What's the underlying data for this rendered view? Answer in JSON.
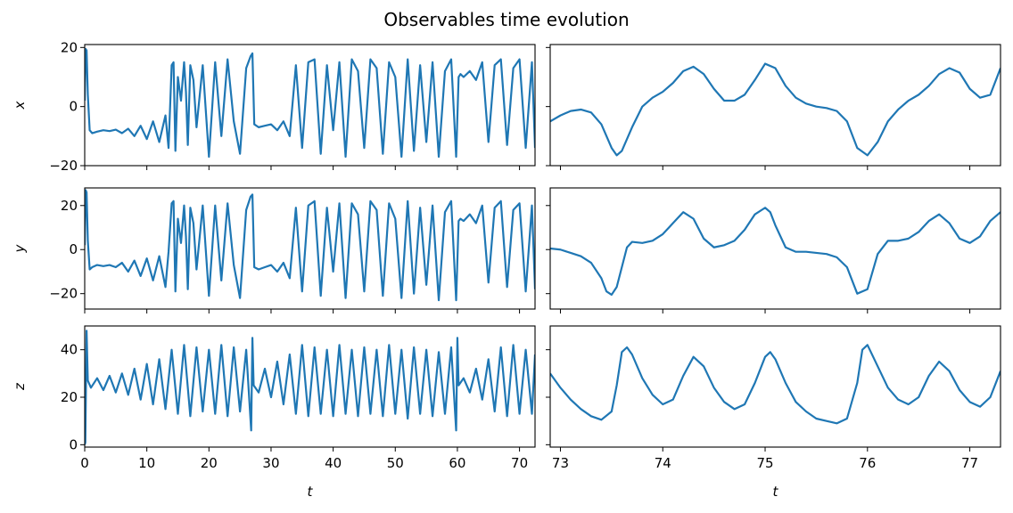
{
  "title": "Observables time evolution",
  "chart_data": [
    {
      "type": "line",
      "panel": "x-full",
      "ylabel": "x",
      "xlabel": "",
      "xlim": [
        0,
        72.5
      ],
      "ylim": [
        -20,
        21
      ],
      "xticks": [
        0,
        10,
        20,
        30,
        40,
        50,
        60,
        70
      ],
      "yticks": [
        -20,
        0,
        20
      ],
      "x_ticklabels_visible": false,
      "series": [
        {
          "color": "#1f77b4",
          "x": [
            0,
            0.15,
            0.3,
            0.5,
            0.8,
            1.2,
            2,
            3,
            4,
            5,
            6,
            7,
            8,
            9,
            10,
            11,
            12,
            13,
            13.5,
            14,
            14.3,
            14.6,
            15,
            15.5,
            16,
            16.3,
            16.6,
            17,
            17.5,
            18,
            19,
            20,
            21,
            22,
            23,
            24,
            25,
            26,
            26.7,
            27,
            27.3,
            28,
            29,
            30,
            31,
            32,
            33,
            34,
            35,
            36,
            37,
            38,
            39,
            40,
            41,
            42,
            43,
            44,
            45,
            46,
            47,
            48,
            49,
            50,
            51,
            52,
            53,
            54,
            55,
            56,
            57,
            58,
            59,
            59.8,
            60.2,
            60.5,
            61,
            62,
            63,
            64,
            65,
            66,
            67,
            68,
            69,
            70,
            71,
            72,
            72.5
          ],
          "values": [
            2,
            19.5,
            19,
            4,
            -8,
            -9,
            -8.5,
            -8,
            -8.3,
            -7.8,
            -9,
            -7.5,
            -10,
            -6.5,
            -11,
            -5,
            -12,
            -3,
            -14,
            14,
            15,
            -15,
            10,
            2,
            15,
            5,
            -13,
            14,
            9,
            -7,
            14,
            -17,
            15,
            -10,
            16,
            -5,
            -16,
            13,
            17,
            18,
            -6,
            -7,
            -6.5,
            -6,
            -8,
            -5,
            -10,
            14,
            -14,
            15,
            16,
            -16,
            14,
            -8,
            15,
            -17,
            16,
            12,
            -14,
            16,
            13,
            -16,
            15,
            10,
            -17,
            16,
            -15,
            14,
            -12,
            15,
            -17,
            12,
            16,
            -17,
            10,
            11,
            10,
            12,
            9,
            15,
            -12,
            14,
            16,
            -13,
            13,
            16,
            -14,
            15,
            -14
          ]
        }
      ]
    },
    {
      "type": "line",
      "panel": "x-zoom",
      "ylabel": "",
      "xlabel": "",
      "xlim": [
        72.9,
        77.3
      ],
      "ylim": [
        -20,
        21
      ],
      "xticks": [
        73,
        74,
        75,
        76,
        77
      ],
      "yticks": [
        -20,
        0,
        20
      ],
      "x_ticklabels_visible": false,
      "y_ticklabels_visible": false,
      "series": [
        {
          "color": "#1f77b4",
          "x": [
            72.9,
            73,
            73.1,
            73.2,
            73.3,
            73.4,
            73.5,
            73.55,
            73.6,
            73.7,
            73.8,
            73.9,
            74,
            74.1,
            74.2,
            74.3,
            74.4,
            74.5,
            74.6,
            74.7,
            74.8,
            74.9,
            75,
            75.1,
            75.2,
            75.3,
            75.4,
            75.5,
            75.6,
            75.7,
            75.8,
            75.9,
            76,
            76.1,
            76.2,
            76.3,
            76.4,
            76.5,
            76.6,
            76.7,
            76.8,
            76.9,
            77,
            77.1,
            77.2,
            77.3
          ],
          "values": [
            -5,
            -3,
            -1.5,
            -1,
            -2,
            -6,
            -14,
            -16.5,
            -15,
            -7,
            0,
            3,
            5,
            8,
            12,
            13.5,
            11,
            6,
            2,
            2,
            4,
            9,
            14.5,
            13,
            7,
            3,
            1,
            0,
            -0.5,
            -1.5,
            -5,
            -14,
            -16.5,
            -12,
            -5,
            -1,
            2,
            4,
            7,
            11,
            13,
            11.5,
            6,
            3,
            4,
            13
          ]
        }
      ]
    },
    {
      "type": "line",
      "panel": "y-full",
      "ylabel": "y",
      "xlabel": "",
      "xlim": [
        0,
        72.5
      ],
      "ylim": [
        -27,
        28
      ],
      "xticks": [
        0,
        10,
        20,
        30,
        40,
        50,
        60,
        70
      ],
      "yticks": [
        -20,
        0,
        20
      ],
      "x_ticklabels_visible": false,
      "series": [
        {
          "color": "#1f77b4",
          "x": [
            0,
            0.15,
            0.3,
            0.5,
            0.8,
            1.2,
            2,
            3,
            4,
            5,
            6,
            7,
            8,
            9,
            10,
            11,
            12,
            13,
            13.5,
            14,
            14.3,
            14.6,
            15,
            15.5,
            16,
            16.3,
            16.6,
            17,
            17.5,
            18,
            19,
            20,
            21,
            22,
            23,
            24,
            25,
            26,
            26.7,
            27,
            27.3,
            28,
            29,
            30,
            31,
            32,
            33,
            34,
            35,
            36,
            37,
            38,
            39,
            40,
            41,
            42,
            43,
            44,
            45,
            46,
            47,
            48,
            49,
            50,
            51,
            52,
            53,
            54,
            55,
            56,
            57,
            58,
            59,
            59.8,
            60.2,
            60.5,
            61,
            62,
            63,
            64,
            65,
            66,
            67,
            68,
            69,
            70,
            71,
            72,
            72.5
          ],
          "values": [
            2,
            27,
            26,
            4,
            -9,
            -8,
            -7,
            -7.5,
            -7,
            -8,
            -6,
            -10,
            -5,
            -12,
            -4,
            -14,
            -3,
            -17,
            -1,
            21,
            22,
            -19,
            14,
            3,
            20,
            6,
            -18,
            19,
            12,
            -9,
            20,
            -21,
            20,
            -14,
            21,
            -7,
            -22,
            18,
            24,
            25,
            -8,
            -9,
            -8,
            -7,
            -10,
            -6,
            -13,
            19,
            -19,
            20,
            22,
            -21,
            19,
            -10,
            21,
            -22,
            21,
            16,
            -19,
            22,
            18,
            -21,
            21,
            14,
            -22,
            22,
            -20,
            19,
            -16,
            20,
            -23,
            17,
            22,
            -23,
            13,
            14,
            13,
            16,
            12,
            20,
            -15,
            19,
            22,
            -17,
            18,
            21,
            -19,
            20,
            -18
          ]
        }
      ]
    },
    {
      "type": "line",
      "panel": "y-zoom",
      "ylabel": "",
      "xlabel": "",
      "xlim": [
        72.9,
        77.3
      ],
      "ylim": [
        -27,
        28
      ],
      "xticks": [
        73,
        74,
        75,
        76,
        77
      ],
      "yticks": [
        -20,
        0,
        20
      ],
      "x_ticklabels_visible": false,
      "y_ticklabels_visible": false,
      "series": [
        {
          "color": "#1f77b4",
          "x": [
            72.9,
            73,
            73.1,
            73.2,
            73.3,
            73.4,
            73.45,
            73.5,
            73.55,
            73.6,
            73.65,
            73.7,
            73.8,
            73.9,
            74,
            74.1,
            74.2,
            74.3,
            74.4,
            74.5,
            74.6,
            74.7,
            74.8,
            74.9,
            75,
            75.05,
            75.1,
            75.2,
            75.3,
            75.4,
            75.5,
            75.6,
            75.7,
            75.8,
            75.9,
            76,
            76.1,
            76.2,
            76.3,
            76.4,
            76.5,
            76.6,
            76.7,
            76.8,
            76.9,
            77,
            77.1,
            77.2,
            77.3
          ],
          "values": [
            0.5,
            0,
            -1.5,
            -3,
            -6,
            -13,
            -19,
            -20.5,
            -17,
            -8,
            1,
            3.5,
            3,
            4,
            7,
            12,
            17,
            14,
            5,
            1,
            2,
            4,
            9,
            16,
            19,
            17,
            11,
            1,
            -1,
            -1,
            -1.5,
            -2,
            -3.5,
            -8,
            -20,
            -18,
            -2,
            4,
            4,
            5,
            8,
            13,
            16,
            12,
            5,
            3,
            6,
            13,
            17
          ]
        }
      ]
    },
    {
      "type": "line",
      "panel": "z-full",
      "ylabel": "z",
      "xlabel": "t",
      "xlim": [
        0,
        72.5
      ],
      "ylim": [
        -1,
        50
      ],
      "xticks": [
        0,
        10,
        20,
        30,
        40,
        50,
        60,
        70
      ],
      "yticks": [
        0,
        20,
        40
      ],
      "x_ticklabels_visible": true,
      "series": [
        {
          "color": "#1f77b4",
          "x": [
            0,
            0.1,
            0.3,
            0.5,
            1,
            2,
            3,
            4,
            5,
            6,
            7,
            8,
            9,
            10,
            11,
            12,
            13,
            14,
            15,
            16,
            17,
            18,
            19,
            20,
            21,
            22,
            23,
            24,
            25,
            26,
            26.8,
            27,
            27.2,
            28,
            29,
            30,
            31,
            32,
            33,
            34,
            35,
            36,
            37,
            38,
            39,
            40,
            41,
            42,
            43,
            44,
            45,
            46,
            47,
            48,
            49,
            50,
            51,
            52,
            53,
            54,
            55,
            56,
            57,
            58,
            59,
            59.8,
            60,
            60.2,
            61,
            62,
            63,
            64,
            65,
            66,
            67,
            68,
            69,
            70,
            71,
            72,
            72.5
          ],
          "values": [
            0,
            1,
            48,
            27,
            24,
            28,
            23,
            29,
            22,
            30,
            21,
            32,
            19,
            34,
            17,
            36,
            15,
            40,
            13,
            42,
            12,
            41,
            14,
            40,
            13,
            42,
            12,
            41,
            14,
            40,
            6,
            45,
            25,
            22,
            32,
            20,
            35,
            17,
            38,
            13,
            42,
            12,
            41,
            13,
            40,
            12,
            42,
            13,
            40,
            12,
            41,
            13,
            40,
            12,
            42,
            13,
            40,
            11,
            41,
            13,
            40,
            12,
            39,
            13,
            41,
            6,
            45,
            25,
            28,
            22,
            32,
            19,
            36,
            14,
            41,
            12,
            42,
            13,
            40,
            13,
            38
          ]
        }
      ]
    },
    {
      "type": "line",
      "panel": "z-zoom",
      "ylabel": "",
      "xlabel": "t",
      "xlim": [
        72.9,
        77.3
      ],
      "ylim": [
        -1,
        50
      ],
      "xticks": [
        73,
        74,
        75,
        76,
        77
      ],
      "yticks": [
        0,
        20,
        40
      ],
      "x_ticklabels_visible": true,
      "y_ticklabels_visible": false,
      "series": [
        {
          "color": "#1f77b4",
          "x": [
            72.9,
            73,
            73.1,
            73.2,
            73.3,
            73.4,
            73.5,
            73.55,
            73.6,
            73.65,
            73.7,
            73.8,
            73.9,
            74,
            74.1,
            74.2,
            74.3,
            74.4,
            74.5,
            74.6,
            74.7,
            74.8,
            74.9,
            75,
            75.05,
            75.1,
            75.2,
            75.3,
            75.4,
            75.5,
            75.6,
            75.7,
            75.8,
            75.9,
            75.95,
            76,
            76.1,
            76.2,
            76.3,
            76.4,
            76.5,
            76.6,
            76.7,
            76.8,
            76.9,
            77,
            77.1,
            77.2,
            77.3
          ],
          "values": [
            30,
            24,
            19,
            15,
            12,
            10.5,
            14,
            25,
            39,
            41,
            38,
            28,
            21,
            17,
            19,
            29,
            37,
            33,
            24,
            18,
            15,
            17,
            26,
            37,
            39,
            36,
            26,
            18,
            14,
            11,
            10,
            9,
            11,
            26,
            40,
            42,
            33,
            24,
            19,
            17,
            20,
            29,
            35,
            31,
            23,
            18,
            16,
            20,
            31
          ]
        }
      ]
    }
  ]
}
